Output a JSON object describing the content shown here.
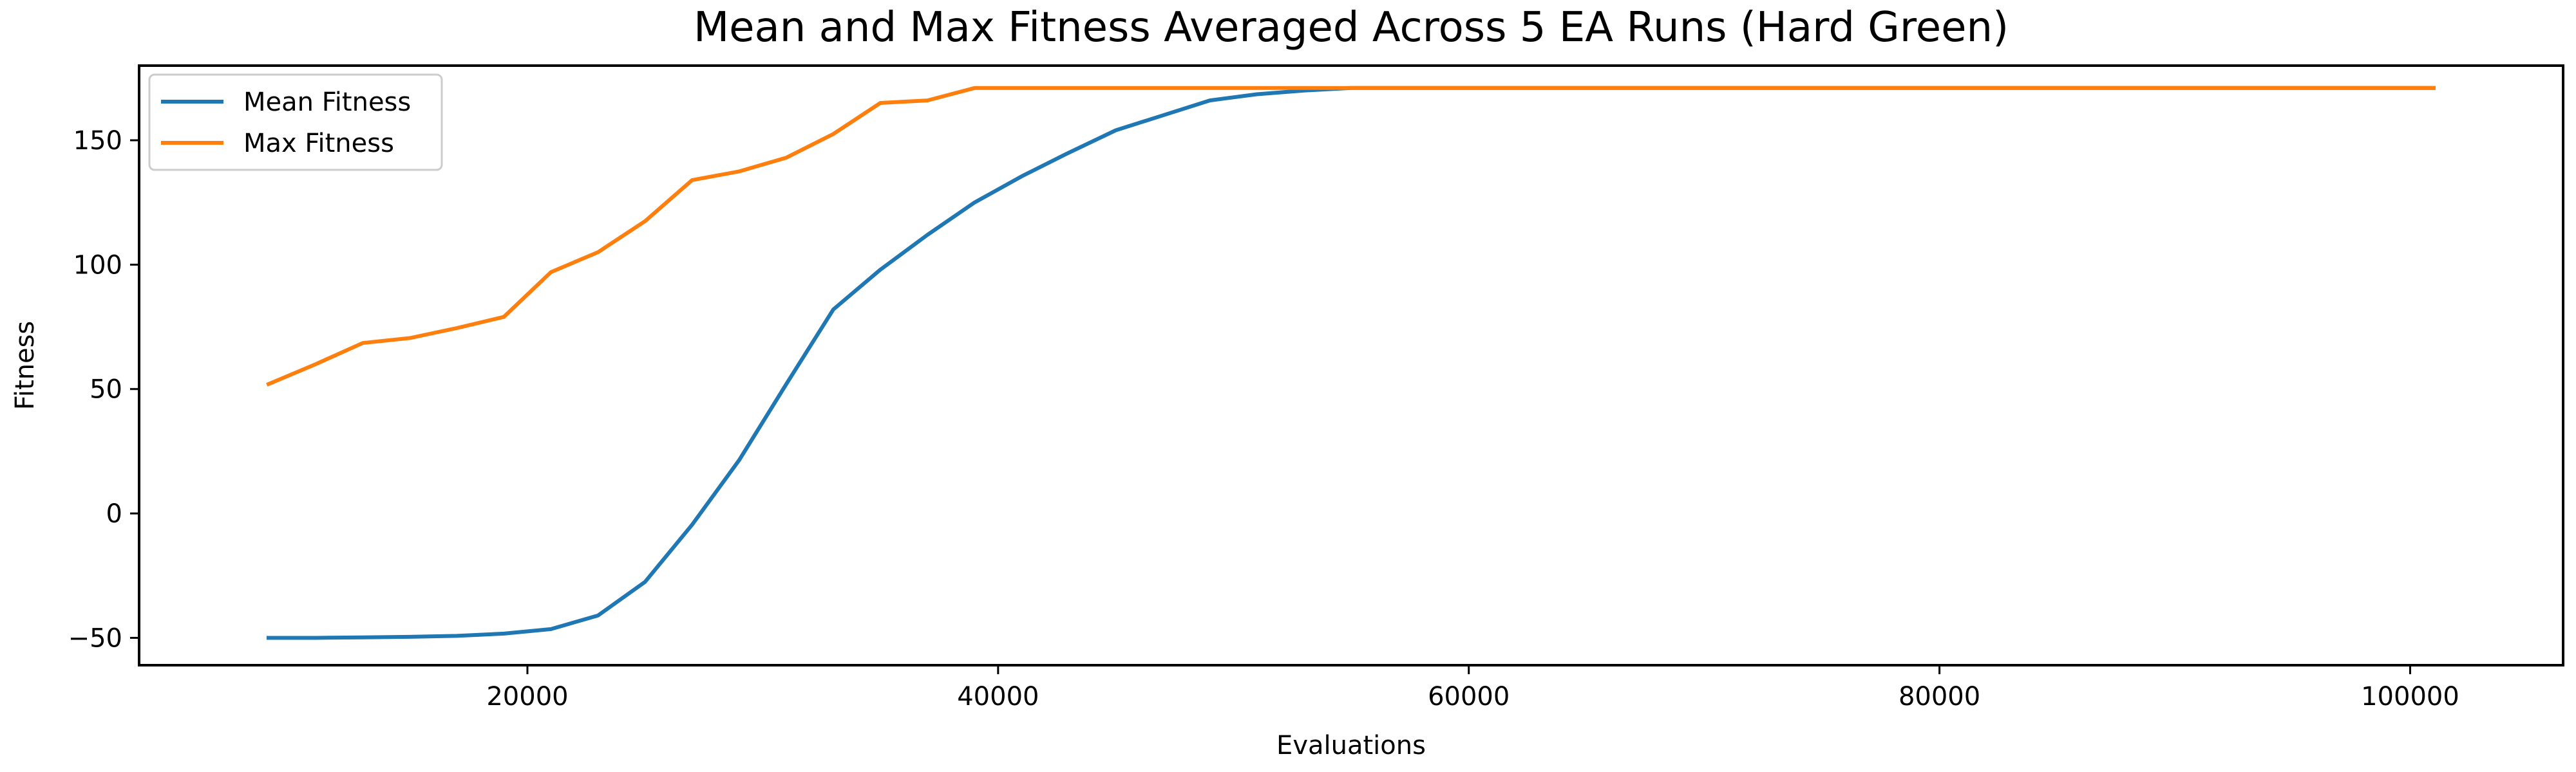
{
  "chart_data": {
    "type": "line",
    "title": "Mean and Max Fitness Averaged Across 5 EA Runs (Hard Green)",
    "xlabel": "Evaluations",
    "ylabel": "Fitness",
    "xlim": [
      3500,
      106500
    ],
    "ylim": [
      -61,
      180
    ],
    "xticks": [
      20000,
      40000,
      60000,
      80000,
      100000
    ],
    "yticks": [
      -50,
      0,
      50,
      100,
      150
    ],
    "grid": false,
    "legend_position": "top-left",
    "series": [
      {
        "name": "Mean Fitness",
        "color": "#1f77b4",
        "x": [
          9000,
          11000,
          13000,
          15000,
          17000,
          19000,
          21000,
          23000,
          25000,
          27000,
          29000,
          31000,
          33000,
          35000,
          37000,
          39000,
          41000,
          43000,
          45000,
          47000,
          49000,
          51000,
          53000,
          55000,
          57000,
          59000,
          61000,
          65000,
          70000,
          75000,
          80000,
          85000,
          90000,
          95000,
          101000
        ],
        "y": [
          -50,
          -50,
          -49.8,
          -49.6,
          -49.2,
          -48.3,
          -46.5,
          -41,
          -27.5,
          -4.5,
          21.5,
          52,
          82,
          98,
          112,
          125,
          135.5,
          145,
          154,
          160,
          166,
          168.5,
          170,
          171,
          171,
          171,
          171,
          171,
          171,
          171,
          171,
          171,
          171,
          171,
          171
        ]
      },
      {
        "name": "Max Fitness",
        "color": "#ff7f0e",
        "x": [
          9000,
          11000,
          13000,
          15000,
          17000,
          19000,
          21000,
          23000,
          25000,
          27000,
          29000,
          31000,
          33000,
          35000,
          37000,
          39000,
          41000,
          45000,
          50000,
          55000,
          60000,
          65000,
          70000,
          75000,
          80000,
          85000,
          90000,
          95000,
          101000
        ],
        "y": [
          52,
          60,
          68.5,
          70.5,
          74.5,
          79,
          97,
          105,
          117.5,
          134,
          137.5,
          143,
          152.5,
          165,
          166,
          171,
          171,
          171,
          171,
          171,
          171,
          171,
          171,
          171,
          171,
          171,
          171,
          171,
          171
        ]
      }
    ]
  }
}
